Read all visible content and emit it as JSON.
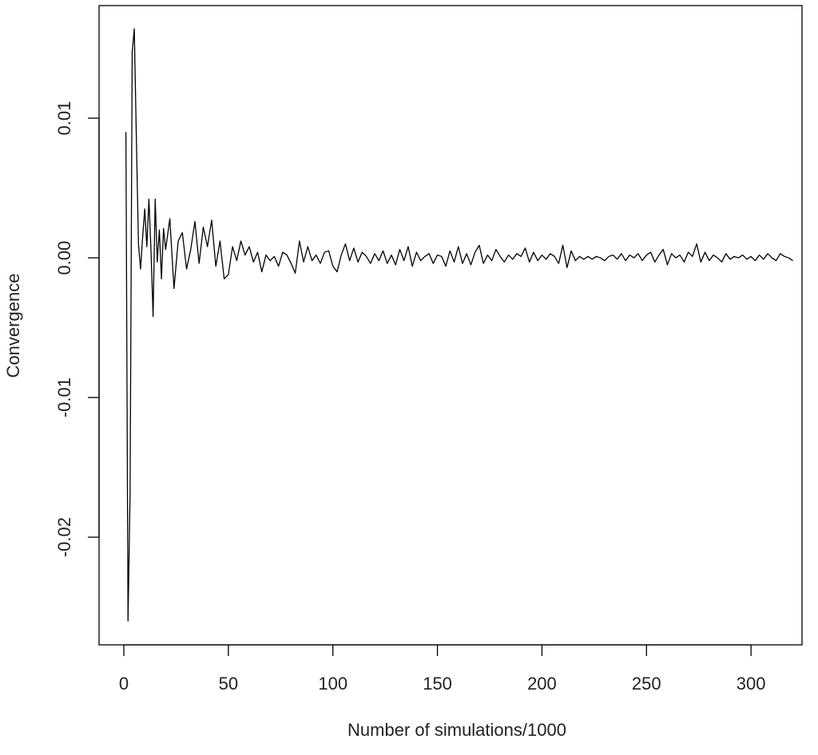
{
  "chart_data": {
    "type": "line",
    "xlabel": "Number of simulations/1000",
    "ylabel": "Convergence",
    "color": "#000000",
    "grid": false,
    "xlim": [
      -11.85,
      324.4
    ],
    "ylim": [
      -0.02771,
      0.01806
    ],
    "xticks": [
      0,
      50,
      100,
      150,
      200,
      250,
      300
    ],
    "yticks": [
      -0.02,
      -0.01,
      {
        "value": 0,
        "label": "0.00"
      },
      0.01
    ],
    "x": [
      1,
      2,
      3,
      4,
      5,
      6,
      7,
      8,
      9,
      10,
      11,
      12,
      13,
      14,
      15,
      16,
      17,
      18,
      19,
      20,
      22,
      24,
      26,
      28,
      30,
      32,
      34,
      36,
      38,
      40,
      42,
      44,
      46,
      48,
      50,
      52,
      54,
      56,
      58,
      60,
      62,
      64,
      66,
      68,
      70,
      72,
      74,
      76,
      78,
      80,
      82,
      84,
      86,
      88,
      90,
      92,
      94,
      96,
      98,
      100,
      102,
      104,
      106,
      108,
      110,
      112,
      114,
      116,
      118,
      120,
      122,
      124,
      126,
      128,
      130,
      132,
      134,
      136,
      138,
      140,
      142,
      144,
      146,
      148,
      150,
      152,
      154,
      156,
      158,
      160,
      162,
      164,
      166,
      168,
      170,
      172,
      174,
      176,
      178,
      180,
      182,
      184,
      186,
      188,
      190,
      192,
      194,
      196,
      198,
      200,
      202,
      204,
      206,
      208,
      210,
      212,
      214,
      216,
      218,
      220,
      222,
      224,
      226,
      228,
      230,
      232,
      234,
      236,
      238,
      240,
      242,
      244,
      246,
      248,
      250,
      252,
      254,
      256,
      258,
      260,
      262,
      264,
      266,
      268,
      270,
      272,
      274,
      276,
      278,
      280,
      282,
      284,
      286,
      288,
      290,
      292,
      294,
      296,
      298,
      300,
      302,
      304,
      306,
      308,
      310,
      312,
      314,
      316,
      318,
      320
    ],
    "values": [
      0.009,
      -0.026,
      -0.0168,
      0.0147,
      0.0164,
      0.0085,
      0.001,
      -0.0008,
      0.0015,
      0.0035,
      0.0008,
      0.0042,
      0.0005,
      -0.0042,
      0.0042,
      -0.0003,
      0.002,
      -0.0015,
      0.0021,
      0.0006,
      0.0028,
      -0.0022,
      0.0012,
      0.0018,
      -0.0008,
      0.0006,
      0.0026,
      -0.0004,
      0.0022,
      0.0008,
      0.0027,
      -0.0006,
      0.0012,
      -0.0015,
      -0.0012,
      0.0008,
      -0.0002,
      0.0012,
      0.0002,
      0.0008,
      -0.0003,
      0.0004,
      -0.001,
      0.0002,
      -0.0002,
      0.0001,
      -0.0006,
      0.0004,
      0.0002,
      -0.0004,
      -0.0011,
      0.0012,
      -0.0003,
      0.0008,
      -0.0002,
      0.0002,
      -0.0004,
      0.0004,
      0.0005,
      -0.0006,
      -0.001,
      0.0002,
      0.001,
      -0.0002,
      0.0007,
      -0.0003,
      0.0004,
      0.0001,
      -0.0004,
      0.0003,
      -0.0002,
      0.0005,
      -0.0004,
      0.0002,
      -0.0005,
      0.0006,
      -0.0002,
      0.0008,
      -0.0006,
      0.0004,
      -0.0002,
      0.0001,
      0.0003,
      -0.0004,
      0.0002,
      0.0001,
      -0.0006,
      0.0005,
      -0.0003,
      0.0008,
      -0.0004,
      0.0003,
      -0.0005,
      0.0004,
      0.0009,
      -0.0004,
      0.0002,
      -0.0002,
      0.0006,
      0.0001,
      -0.0003,
      0.0002,
      -0.0001,
      0.0003,
      0.0001,
      0.0007,
      -0.0003,
      0.0004,
      -0.0002,
      0.0002,
      -0.0001,
      0.0003,
      0.0001,
      -0.0004,
      0.0009,
      -0.0007,
      0.0005,
      -0.0002,
      0.0001,
      -0.0001,
      0.0001,
      -0.0001,
      0.0001,
      0,
      -0.0002,
      0.0001,
      0.0002,
      -0.0001,
      0.0003,
      -0.0002,
      0.0002,
      0,
      0.0003,
      -0.0002,
      0.0002,
      0.0004,
      -0.0003,
      0.0002,
      0.0006,
      -0.0005,
      0.0003,
      0,
      0.0002,
      -0.0003,
      0.0004,
      0.0001,
      0.001,
      -0.0003,
      0.0004,
      -0.0002,
      0.0002,
      0,
      -0.0003,
      0.0003,
      -0.0001,
      0.0001,
      0,
      0.0002,
      -0.0001,
      0.0001,
      -0.0002,
      0.0002,
      -0.0001,
      0.0003,
      0,
      -0.0002,
      0.0003,
      0.0001,
      0,
      -0.0002
    ]
  }
}
